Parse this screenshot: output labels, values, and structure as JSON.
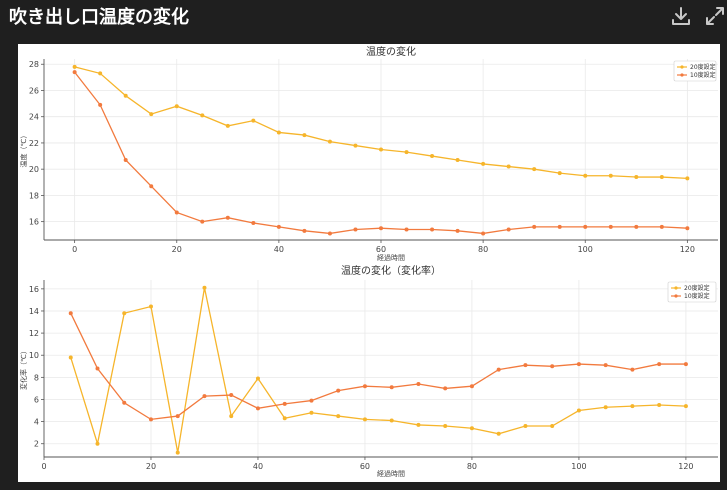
{
  "header": {
    "title": "吹き出し口温度の変化",
    "download_icon": "download-icon",
    "expand_icon": "expand-icon"
  },
  "colors": {
    "series1": "#f6b52b",
    "series2": "#f27a3e",
    "grid": "#e9e9e9",
    "axis": "#555555"
  },
  "chart_data": [
    {
      "type": "line",
      "title": "温度の変化",
      "xlabel": "経過時間",
      "ylabel": "温度（℃）",
      "xlim": [
        -6,
        126
      ],
      "ylim": [
        14.6,
        28.4
      ],
      "xticks": [
        0,
        20,
        40,
        60,
        80,
        100,
        120
      ],
      "yticks": [
        16,
        18,
        20,
        22,
        24,
        26,
        28
      ],
      "grid": true,
      "legend": "top-right",
      "series": [
        {
          "name": "20度設定",
          "x": [
            0,
            5,
            10,
            15,
            20,
            25,
            30,
            35,
            40,
            45,
            50,
            55,
            60,
            65,
            70,
            75,
            80,
            85,
            90,
            95,
            100,
            105,
            110,
            115,
            120
          ],
          "values": [
            27.8,
            27.3,
            25.6,
            24.2,
            24.8,
            24.1,
            23.3,
            23.7,
            22.8,
            22.6,
            22.1,
            21.8,
            21.5,
            21.3,
            21.0,
            20.7,
            20.4,
            20.2,
            20.0,
            19.7,
            19.5,
            19.5,
            19.4,
            19.4,
            19.3
          ]
        },
        {
          "name": "10度設定",
          "x": [
            0,
            5,
            10,
            15,
            20,
            25,
            30,
            35,
            40,
            45,
            50,
            55,
            60,
            65,
            70,
            75,
            80,
            85,
            90,
            95,
            100,
            105,
            110,
            115,
            120
          ],
          "values": [
            27.4,
            24.9,
            20.7,
            18.7,
            16.7,
            16.0,
            16.3,
            15.9,
            15.6,
            15.3,
            15.1,
            15.4,
            15.5,
            15.4,
            15.4,
            15.3,
            15.1,
            15.4,
            15.6,
            15.6,
            15.6,
            15.6,
            15.6,
            15.6,
            15.5
          ]
        }
      ]
    },
    {
      "type": "line",
      "title": "温度の変化（変化率）",
      "xlabel": "経過時間",
      "ylabel": "変化率（℃）",
      "xlim": [
        0,
        126
      ],
      "ylim": [
        0.8,
        16.8
      ],
      "xticks": [
        0,
        20,
        40,
        60,
        80,
        100,
        120
      ],
      "yticks": [
        2,
        4,
        6,
        8,
        10,
        12,
        14,
        16
      ],
      "grid": true,
      "legend": "top-right",
      "series": [
        {
          "name": "20度設定",
          "x": [
            5,
            10,
            15,
            20,
            25,
            30,
            35,
            40,
            45,
            50,
            55,
            60,
            65,
            70,
            75,
            80,
            85,
            90,
            95,
            100,
            105,
            110,
            115,
            120
          ],
          "values": [
            9.8,
            2.0,
            13.8,
            14.4,
            1.2,
            16.1,
            4.5,
            7.9,
            4.3,
            4.8,
            4.5,
            4.2,
            4.1,
            3.7,
            3.6,
            3.4,
            2.9,
            3.6,
            3.6,
            5.0,
            5.3,
            5.4,
            5.5,
            5.4
          ]
        },
        {
          "name": "10度設定",
          "x": [
            5,
            10,
            15,
            20,
            25,
            30,
            35,
            40,
            45,
            50,
            55,
            60,
            65,
            70,
            75,
            80,
            85,
            90,
            95,
            100,
            105,
            110,
            115,
            120
          ],
          "values": [
            13.8,
            8.8,
            5.7,
            4.2,
            4.5,
            6.3,
            6.4,
            5.2,
            5.6,
            5.9,
            6.8,
            7.2,
            7.1,
            7.4,
            7.0,
            7.2,
            8.7,
            9.1,
            9.0,
            9.2,
            9.1,
            8.7,
            9.2,
            9.2
          ]
        }
      ]
    }
  ]
}
